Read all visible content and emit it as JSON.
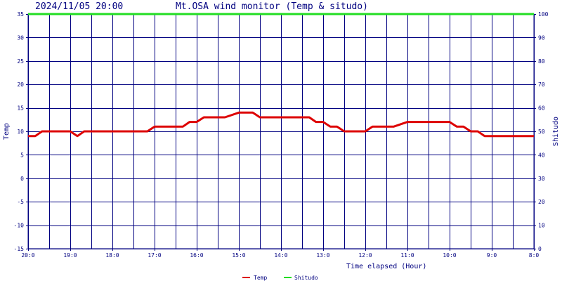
{
  "header": {
    "timestamp": "2024/11/05 20:00",
    "title": "Mt.OSA wind monitor (Temp & situdo)"
  },
  "colors": {
    "grid": "#000080",
    "text": "#000080",
    "temp": "#dd0000",
    "shitudo": "#22dd22"
  },
  "chart_data": {
    "type": "line",
    "title": "Mt.OSA wind monitor (Temp & situdo)",
    "xlabel": "Time elapsed (Hour)",
    "ylabel": "Temp",
    "ylabel_right": "Shitudo",
    "xlim": [
      0,
      12
    ],
    "x_reversed": true,
    "ylim": [
      -15,
      35
    ],
    "ylim_right": [
      0,
      100
    ],
    "y_ticks": [
      -15,
      -10,
      -5,
      0,
      5,
      10,
      15,
      20,
      25,
      30,
      35
    ],
    "y_ticks_right": [
      0,
      10,
      20,
      30,
      40,
      50,
      60,
      70,
      80,
      90,
      100
    ],
    "x_ticks": [
      {
        "value": 0,
        "label": "20:0"
      },
      {
        "value": 1,
        "label": "19:0"
      },
      {
        "value": 2,
        "label": "18:0"
      },
      {
        "value": 3,
        "label": "17:0"
      },
      {
        "value": 4,
        "label": "16:0"
      },
      {
        "value": 5,
        "label": "15:0"
      },
      {
        "value": 6,
        "label": "14:0"
      },
      {
        "value": 7,
        "label": "13:0"
      },
      {
        "value": 8,
        "label": "12:0"
      },
      {
        "value": 9,
        "label": "11:0"
      },
      {
        "value": 10,
        "label": "10:0"
      },
      {
        "value": 11,
        "label": "9:0"
      },
      {
        "value": 12,
        "label": "8:0"
      }
    ],
    "grid": true,
    "legend_position": "bottom-center",
    "series": [
      {
        "name": "Temp",
        "axis": "left",
        "color": "#dd0000",
        "x": [
          0,
          0.17,
          0.33,
          0.5,
          1.0,
          1.17,
          1.33,
          1.5,
          2.0,
          2.5,
          2.83,
          3.0,
          3.17,
          3.33,
          3.67,
          3.83,
          4.0,
          4.17,
          4.33,
          4.67,
          5.0,
          5.17,
          5.33,
          5.5,
          5.67,
          6.0,
          6.5,
          6.67,
          6.83,
          7.0,
          7.17,
          7.33,
          7.5,
          7.67,
          8.0,
          8.17,
          8.33,
          8.67,
          9.0,
          9.17,
          9.33,
          9.67,
          10.0,
          10.17,
          10.33,
          10.5,
          10.67,
          10.83,
          11.0,
          11.5,
          12.0
        ],
        "y": [
          9,
          9,
          10,
          10,
          10,
          9,
          10,
          10,
          10,
          10,
          10,
          11,
          11,
          11,
          11,
          12,
          12,
          13,
          13,
          13,
          14,
          14,
          14,
          13,
          13,
          13,
          13,
          13,
          12,
          12,
          11,
          11,
          10,
          10,
          10,
          11,
          11,
          11,
          12,
          12,
          12,
          12,
          12,
          11,
          11,
          10,
          10,
          9,
          9,
          9,
          9
        ]
      },
      {
        "name": "Shitudo",
        "axis": "right",
        "color": "#22dd22",
        "x": [
          0,
          12
        ],
        "y": [
          100,
          100
        ]
      }
    ]
  }
}
